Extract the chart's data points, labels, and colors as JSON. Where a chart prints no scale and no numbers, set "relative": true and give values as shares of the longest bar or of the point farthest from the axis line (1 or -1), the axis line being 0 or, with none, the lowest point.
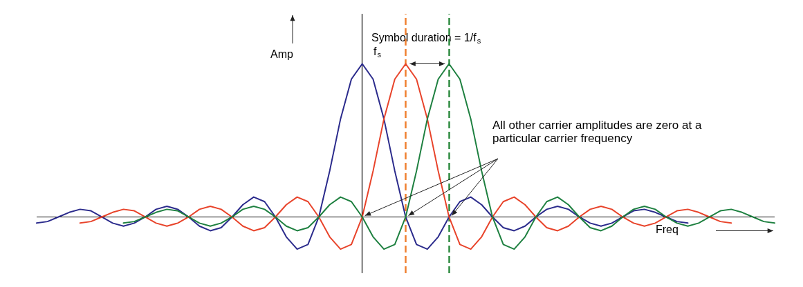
{
  "chart_data": {
    "type": "line",
    "relative": true,
    "tick_labels": false,
    "grid": false,
    "marker": "none",
    "line_style": "solid",
    "xlabel": "Freq",
    "ylabel": "Amp",
    "categories": [
      null,
      null,
      null,
      null,
      null,
      null,
      null,
      null,
      null,
      null,
      null,
      null,
      null,
      null,
      null,
      null,
      null,
      null,
      null,
      null,
      null,
      null,
      null,
      null,
      null,
      null,
      null,
      null,
      null,
      null,
      null,
      null,
      null,
      null,
      null,
      null,
      null,
      null,
      null,
      null,
      null,
      null,
      null,
      null,
      null,
      null,
      null,
      null,
      null,
      null,
      null,
      null,
      null,
      null,
      null,
      null,
      null,
      null,
      null,
      null,
      null,
      null,
      null,
      null,
      null,
      null,
      null,
      null,
      null
    ],
    "annotations": [
      "Symbol duration = 1/f$_{s}$",
      "f$_{s}$",
      "All other carrier amplitudes are zero at a particular carrier frequency"
    ],
    "ref_lines": [
      {
        "axis": "y",
        "value": 0,
        "color": "#000000",
        "line_style": "solid"
      }
    ],
    "series": [
      {
        "color": "#2b2b8c",
        "values": [
          -0.04,
          -0.03,
          0,
          0.03,
          0.05,
          0.04,
          0,
          -0.04,
          -0.06,
          -0.04,
          0,
          0.05,
          0.07,
          0.05,
          0,
          -0.06,
          -0.09,
          -0.07,
          0,
          0.08,
          0.13,
          0.1,
          0,
          -0.13,
          -0.21,
          -0.18,
          0,
          0.3,
          0.64,
          0.9,
          1,
          0.9,
          0.64,
          0.3,
          0,
          -0.18,
          -0.21,
          -0.13,
          0,
          0.1,
          0.13,
          0.08,
          0,
          -0.07,
          -0.09,
          -0.06,
          0,
          0.05,
          0.07,
          0.05,
          0,
          -0.04,
          -0.06,
          -0.04,
          0,
          0.04,
          0.05,
          0.03,
          0,
          -0.03,
          -0.04,
          null,
          null,
          null,
          null,
          null,
          null,
          null,
          null
        ]
      },
      {
        "color": "#e8432a",
        "values": [
          null,
          null,
          null,
          null,
          -0.04,
          -0.03,
          0,
          0.03,
          0.05,
          0.04,
          0,
          -0.04,
          -0.06,
          -0.04,
          0,
          0.05,
          0.07,
          0.05,
          0,
          -0.06,
          -0.09,
          -0.07,
          0,
          0.08,
          0.13,
          0.1,
          0,
          -0.13,
          -0.21,
          -0.18,
          0,
          0.3,
          0.64,
          0.9,
          1,
          0.9,
          0.64,
          0.3,
          0,
          -0.18,
          -0.21,
          -0.13,
          0,
          0.1,
          0.13,
          0.08,
          0,
          -0.07,
          -0.09,
          -0.06,
          0,
          0.05,
          0.07,
          0.05,
          0,
          -0.04,
          -0.06,
          -0.04,
          0,
          0.04,
          0.05,
          0.03,
          0,
          -0.03,
          -0.04,
          null,
          null,
          null,
          null
        ]
      },
      {
        "color": "#1e8040",
        "values": [
          null,
          null,
          null,
          null,
          null,
          null,
          null,
          null,
          -0.04,
          -0.03,
          0,
          0.03,
          0.05,
          0.04,
          0,
          -0.04,
          -0.06,
          -0.04,
          0,
          0.05,
          0.07,
          0.05,
          0,
          -0.06,
          -0.09,
          -0.07,
          0,
          0.08,
          0.13,
          0.1,
          0,
          -0.13,
          -0.21,
          -0.18,
          0,
          0.3,
          0.64,
          0.9,
          1,
          0.9,
          0.64,
          0.3,
          0,
          -0.18,
          -0.21,
          -0.13,
          0,
          0.1,
          0.13,
          0.08,
          0,
          -0.07,
          -0.09,
          -0.06,
          0,
          0.05,
          0.07,
          0.05,
          0,
          -0.04,
          -0.06,
          -0.04,
          0,
          0.04,
          0.05,
          0.03,
          0,
          -0.03,
          -0.04
        ]
      }
    ]
  }
}
